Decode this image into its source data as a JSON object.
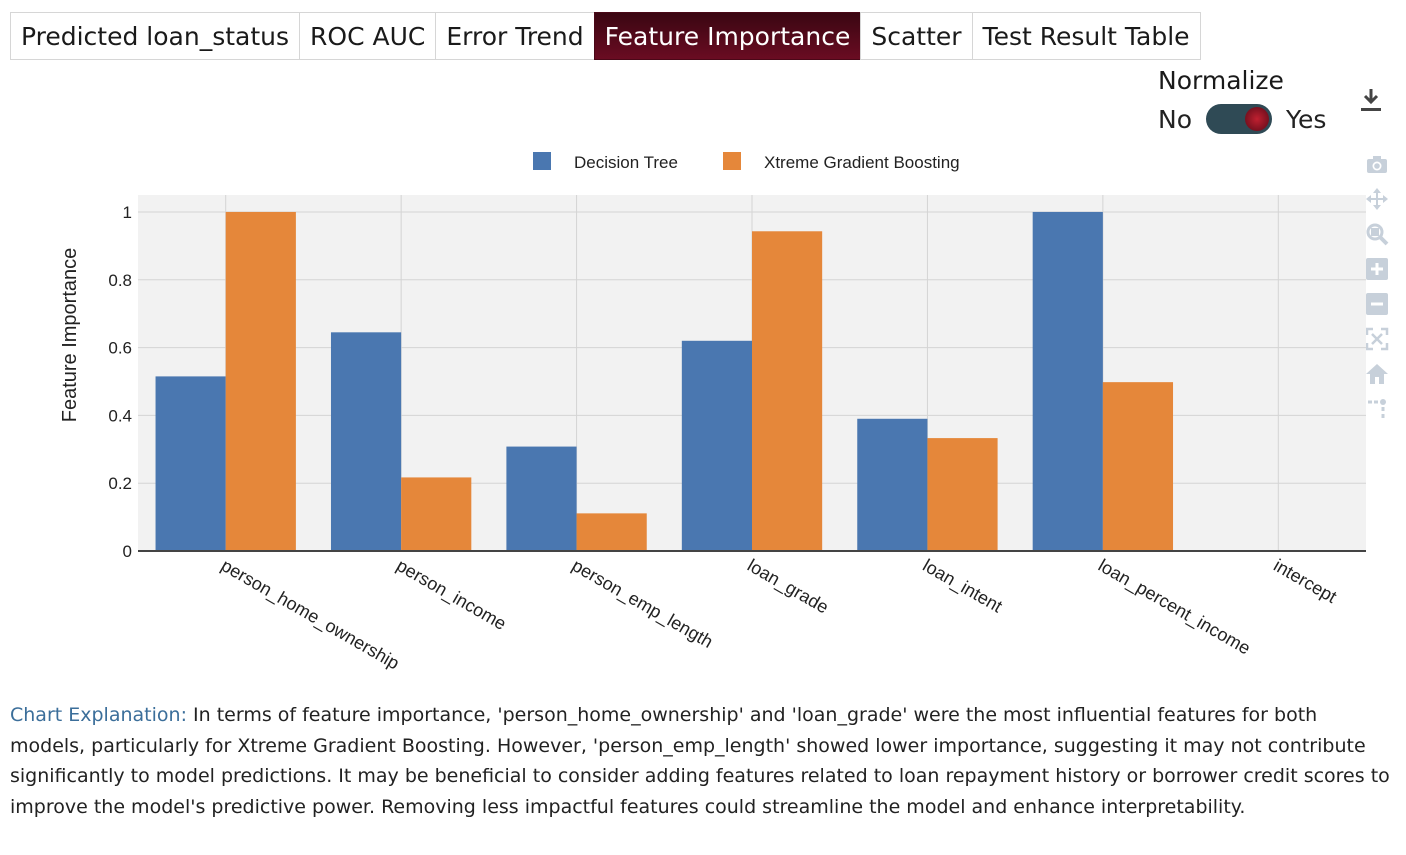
{
  "tabs": [
    {
      "label": "Predicted loan_status",
      "active": false
    },
    {
      "label": "ROC AUC",
      "active": false
    },
    {
      "label": "Error Trend",
      "active": false
    },
    {
      "label": "Feature Importance",
      "active": true
    },
    {
      "label": "Scatter",
      "active": false
    },
    {
      "label": "Test Result Table",
      "active": false
    }
  ],
  "normalize": {
    "title": "Normalize",
    "no_label": "No",
    "yes_label": "Yes",
    "value": "Yes"
  },
  "icons": {
    "download": "download-icon",
    "modebar": [
      "camera-icon",
      "pan-icon",
      "zoom-icon",
      "zoom-in-icon",
      "zoom-out-icon",
      "autoscale-icon",
      "home-icon",
      "spike-lines-icon"
    ]
  },
  "colors": {
    "series_1": "#4a77b0",
    "series_2": "#e5873a",
    "plot_bg": "#f2f2f2",
    "active_tab": "#5a0a1c",
    "explanation_label": "#3b6e9a"
  },
  "chart_data": {
    "type": "bar",
    "categories": [
      "person_home_ownership",
      "person_income",
      "person_emp_length",
      "loan_grade",
      "loan_intent",
      "loan_percent_income",
      "intercept"
    ],
    "series": [
      {
        "name": "Decision Tree",
        "values": [
          0.515,
          0.645,
          0.308,
          0.62,
          0.39,
          1.0,
          0
        ]
      },
      {
        "name": "Xtreme Gradient Boosting",
        "values": [
          1.0,
          0.217,
          0.111,
          0.943,
          0.333,
          0.498,
          0
        ]
      }
    ],
    "ylabel": "Feature Importance",
    "xlabel": "",
    "ylim": [
      0,
      1.05
    ],
    "yticks": [
      0,
      0.2,
      0.4,
      0.6,
      0.8,
      1
    ],
    "ytick_labels": [
      "0",
      "0.2",
      "0.4",
      "0.6",
      "0.8",
      "1"
    ],
    "grid": true,
    "legend_position": "top-center"
  },
  "explanation": {
    "label": "Chart Explanation:",
    "text": "In terms of feature importance, 'person_home_ownership' and 'loan_grade' were the most influential features for both models, particularly for Xtreme Gradient Boosting. However, 'person_emp_length' showed lower importance, suggesting it may not contribute significantly to model predictions. It may be beneficial to consider adding features related to loan repayment history or borrower credit scores to improve the model's predictive power. Removing less impactful features could streamline the model and enhance interpretability."
  }
}
